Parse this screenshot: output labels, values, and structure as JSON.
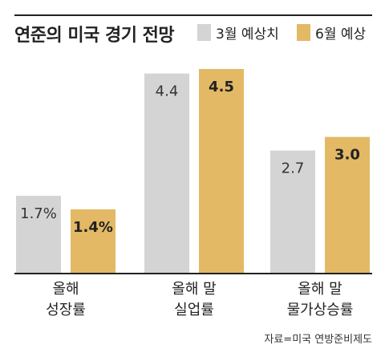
{
  "chart_data": {
    "type": "bar",
    "title": "연준의 미국 경기 전망",
    "categories": [
      [
        "올해",
        "성장률"
      ],
      [
        "올해 말",
        "실업률"
      ],
      [
        "올해 말",
        "물가상승률"
      ]
    ],
    "series": [
      {
        "name": "3월 예상치",
        "values": [
          1.7,
          4.4,
          2.7
        ],
        "labels": [
          "1.7%",
          "4.4",
          "2.7"
        ],
        "color": "#d4d4d4",
        "label_bold": false
      },
      {
        "name": "6월 예상",
        "values": [
          1.4,
          4.5,
          3.0
        ],
        "labels": [
          "1.4%",
          "4.5",
          "3.0"
        ],
        "color": "#e3b965",
        "label_bold": true
      }
    ],
    "group_scales": [
      {
        "category": "성장률",
        "max": 4.5
      },
      {
        "category": "실업률",
        "max": 4.5
      },
      {
        "category": "물가상승률",
        "max": 4.5
      }
    ],
    "source": "자료=미국 연방준비제도"
  }
}
